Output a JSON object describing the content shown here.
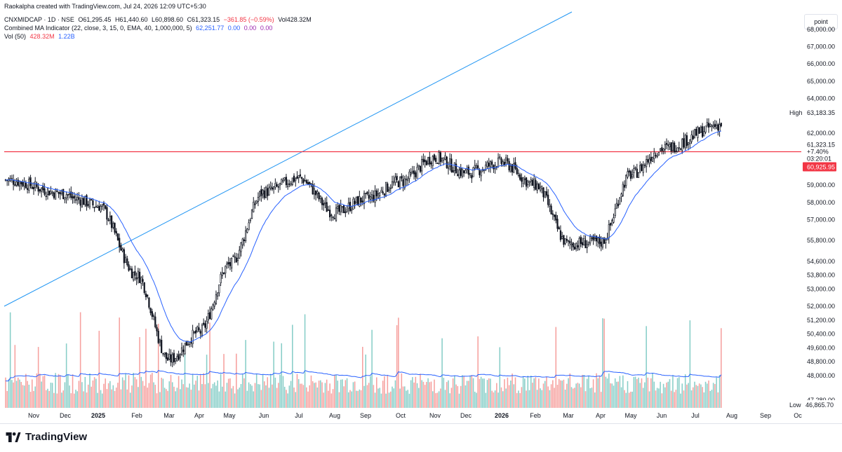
{
  "header": {
    "credit": "Raokalpha created with TradingView.com, Jul 24, 2026 12:09 UTC+5:30",
    "symbol_line": "CNXMIDCAP · 1D · NSE",
    "open": "O61,295.45",
    "high": "H61,440.60",
    "low": "L60,898.60",
    "close": "C61,323.15",
    "change": "−361.85 (−0.59%)",
    "volume": "Vol428.32M",
    "ma_label": "Combined MA Indicator (22, close, 3, 15, 0, EMA, 40, 1,000,000, 5)",
    "ma_v1": "62,251.77",
    "ma_v2": "0.00",
    "ma_v3": "0.00",
    "ma_v4": "0.00",
    "vol_label": "Vol (50)",
    "vol_v1": "428.32M",
    "vol_v2": "1.22B"
  },
  "scale_button": "point",
  "footer": {
    "brand": "TradingView"
  },
  "colors": {
    "up": "#26a69a",
    "down": "#ef5350",
    "candle": "#131722",
    "ma": "#2962ff",
    "trendline": "#2196f3",
    "hline": "#f23645",
    "vol_ma": "#2962ff"
  },
  "chart_data": {
    "type": "candlestick",
    "symbol": "CNXMIDCAP",
    "ylim": [
      46865.7,
      68500
    ],
    "y_ticks": [
      "68,000.00",
      "67,000.00",
      "66,000.00",
      "65,000.00",
      "64,000.00",
      "62,000.00",
      "59,000.00",
      "58,000.00",
      "57,000.00",
      "55,800.00",
      "54,600.00",
      "53,800.00",
      "53,000.00",
      "52,000.00",
      "51,200.00",
      "50,400.00",
      "49,600.00",
      "48,800.00",
      "48,000.00",
      "47,280.00"
    ],
    "x_labels": [
      "Nov",
      "Dec",
      "2025",
      "Feb",
      "Mar",
      "Apr",
      "May",
      "Jun",
      "Jul",
      "Aug",
      "Sep",
      "Oct",
      "Nov",
      "Dec",
      "2026",
      "Feb",
      "Mar",
      "Apr",
      "May",
      "Jun",
      "Jul",
      "Aug",
      "Sep",
      "Oc"
    ],
    "high_marker": {
      "label": "High",
      "value": "63,183.35"
    },
    "low_marker": {
      "label": "Low",
      "value": "46,865.70"
    },
    "last_price": {
      "value": "61,323.15",
      "change": "+7.40%",
      "countdown": "03:20:01"
    },
    "horizontal_line": {
      "value": 60925.95,
      "label": "60,925.95"
    },
    "close_path": [
      [
        "Nov",
        59300
      ],
      [
        "Dec",
        58500
      ],
      [
        "Dec",
        58200
      ],
      [
        "2025",
        57800
      ],
      [
        "Feb",
        53800
      ],
      [
        "Mar",
        48900
      ],
      [
        "Apr",
        50500
      ],
      [
        "May",
        54400
      ],
      [
        "Jun",
        58600
      ],
      [
        "Jul",
        59400
      ],
      [
        "Aug",
        57400
      ],
      [
        "Sep",
        58200
      ],
      [
        "Oct",
        59200
      ],
      [
        "Nov",
        60600
      ],
      [
        "Dec",
        59700
      ],
      [
        "2026",
        60300
      ],
      [
        "Feb",
        59000
      ],
      [
        "Mar",
        55600
      ],
      [
        "Apr",
        55700
      ],
      [
        "May",
        59600
      ],
      [
        "Jun",
        61100
      ],
      [
        "Jul",
        62500
      ]
    ]
  }
}
